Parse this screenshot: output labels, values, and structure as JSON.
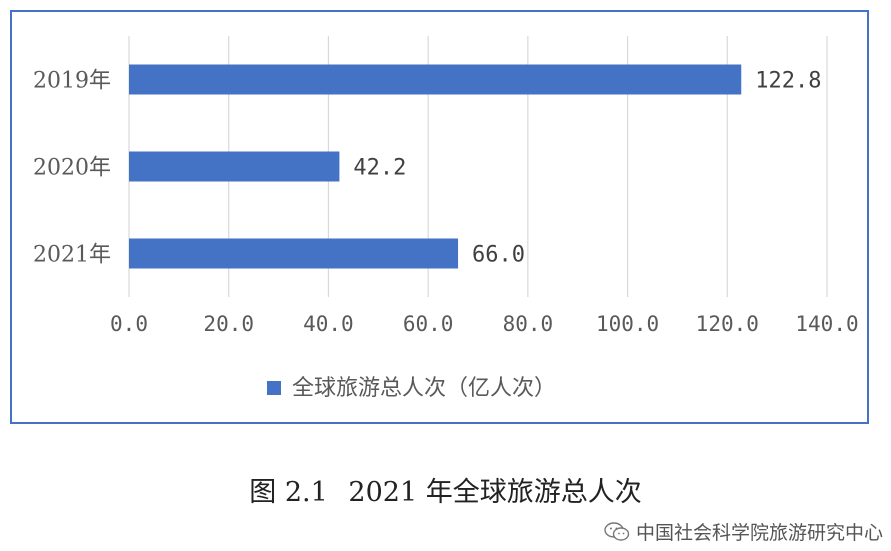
{
  "chart_data": {
    "type": "bar",
    "orientation": "horizontal",
    "categories": [
      "2019年",
      "2020年",
      "2021年"
    ],
    "series": [
      {
        "name": "全球旅游总人次（亿人次）",
        "values": [
          122.8,
          42.2,
          66.0
        ],
        "color": "#4472c4"
      }
    ],
    "value_labels": [
      "122.8",
      "42.2",
      "66.0"
    ],
    "xlim": [
      0,
      140
    ],
    "xticks": [
      0,
      20,
      40,
      60,
      80,
      100,
      120,
      140
    ],
    "xtick_labels": [
      "0.0",
      "20.0",
      "40.0",
      "60.0",
      "80.0",
      "100.0",
      "120.0",
      "140.0"
    ],
    "grid": true,
    "legend_position": "bottom"
  },
  "caption": {
    "figure_no": "图 2.1",
    "title": "2021 年全球旅游总人次"
  },
  "watermark": {
    "text": "中国社会科学院旅游研究中心",
    "icon": "wechat-icon"
  }
}
